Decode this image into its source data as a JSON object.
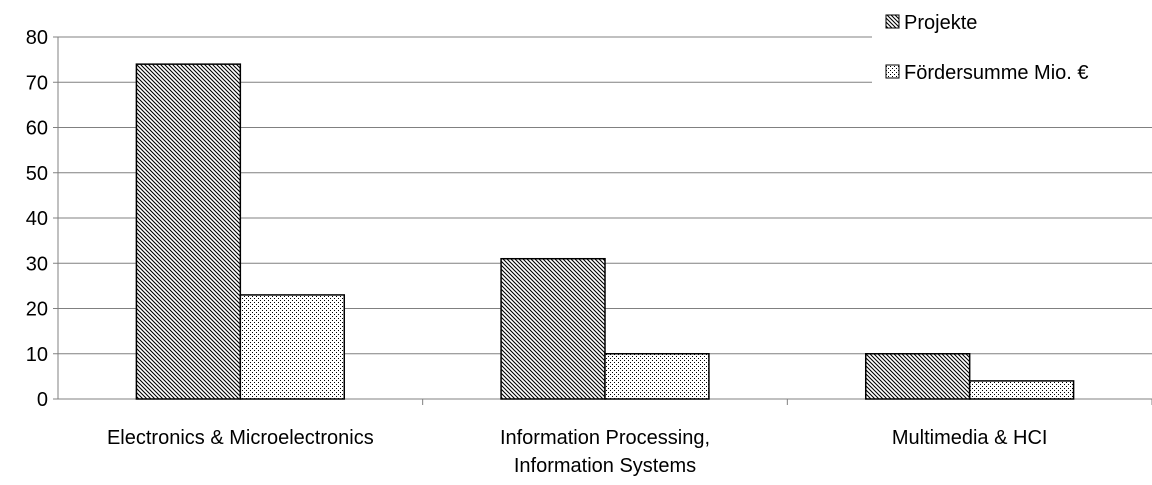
{
  "chart_data": {
    "type": "bar",
    "categories": [
      [
        "Electronics & Microelectronics"
      ],
      [
        "Information Processing,",
        "Information Systems"
      ],
      [
        "Multimedia & HCI"
      ]
    ],
    "series": [
      {
        "name": "Projekte",
        "values": [
          74,
          31,
          10
        ],
        "pattern": "diagonal-hatch"
      },
      {
        "name": "Fördersumme Mio. €",
        "values": [
          23,
          10,
          4
        ],
        "pattern": "dots"
      }
    ],
    "yticks": [
      0,
      10,
      20,
      30,
      40,
      50,
      60,
      70,
      80
    ],
    "ylim": [
      0,
      80
    ],
    "grid": true,
    "legend_position": "top-right",
    "colors": {
      "bar_stroke": "#000000",
      "grid": "#808080",
      "axis": "#808080"
    }
  }
}
